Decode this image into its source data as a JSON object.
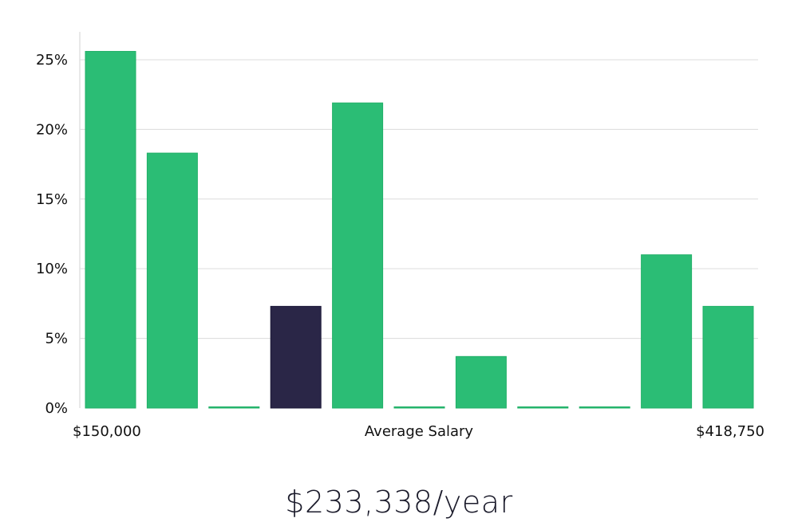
{
  "chart_data": {
    "type": "bar",
    "values": [
      25.6,
      18.3,
      0,
      7.3,
      21.9,
      0,
      3.7,
      0,
      0,
      11.0,
      7.3
    ],
    "highlight_index": 3,
    "ylim": [
      0,
      27
    ],
    "yticks": [
      {
        "value": 0,
        "label": "0%"
      },
      {
        "value": 5,
        "label": "5%"
      },
      {
        "value": 10,
        "label": "10%"
      },
      {
        "value": 15,
        "label": "15%"
      },
      {
        "value": 20,
        "label": "20%"
      },
      {
        "value": 25,
        "label": "25%"
      }
    ],
    "x_min_label": "$150,000",
    "x_max_label": "$418,750",
    "xlabel": "Average Salary",
    "grid": true,
    "colors": {
      "bar": "#2bbd75",
      "highlight": "#2a2647"
    }
  },
  "headline": "$233,338/year"
}
